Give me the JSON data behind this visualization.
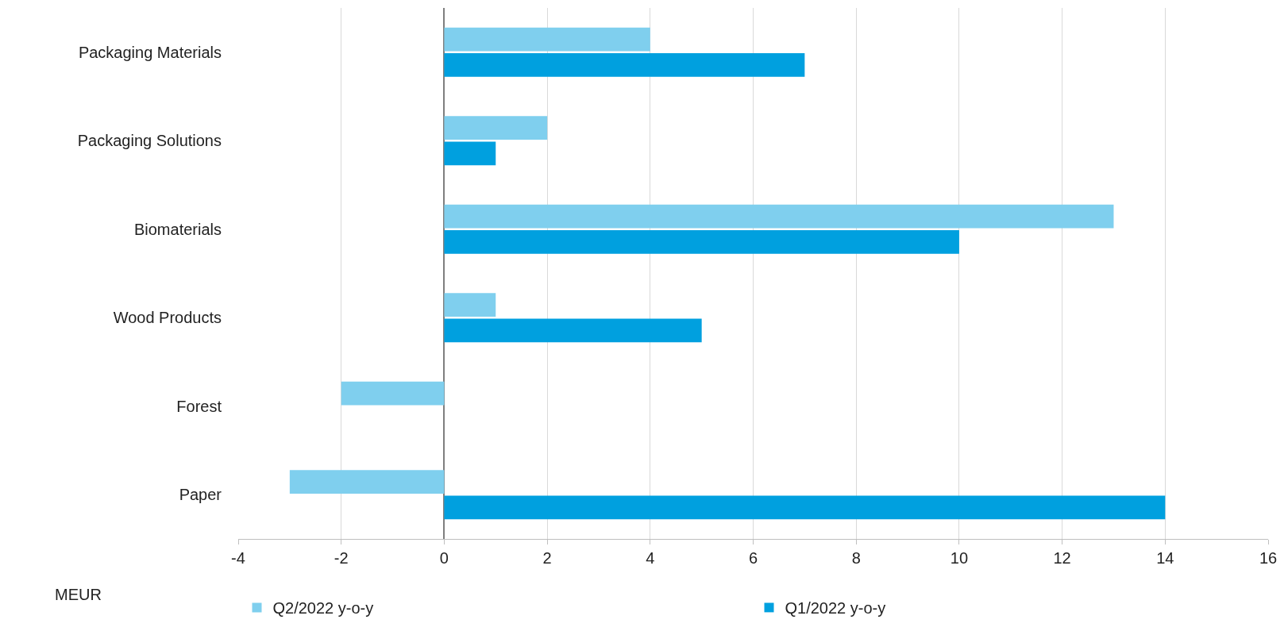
{
  "chart_data": {
    "type": "bar",
    "orientation": "horizontal",
    "xlabel": "MEUR",
    "categories": [
      "Packaging Materials",
      "Packaging Solutions",
      "Biomaterials",
      "Wood Products",
      "Forest",
      "Paper"
    ],
    "series": [
      {
        "name": "Q2/2022 y-o-y",
        "color": "#7fcfee",
        "values": [
          4,
          2,
          13,
          1,
          -2,
          -3
        ]
      },
      {
        "name": "Q1/2022 y-o-y",
        "color": "#00a0df",
        "values": [
          7,
          1,
          10,
          5,
          0,
          14
        ]
      }
    ],
    "xlim": [
      -4,
      16
    ],
    "xticks": [
      -4,
      -2,
      0,
      2,
      4,
      6,
      8,
      10,
      12,
      14,
      16
    ],
    "grid": "x",
    "legend": "bottom"
  }
}
